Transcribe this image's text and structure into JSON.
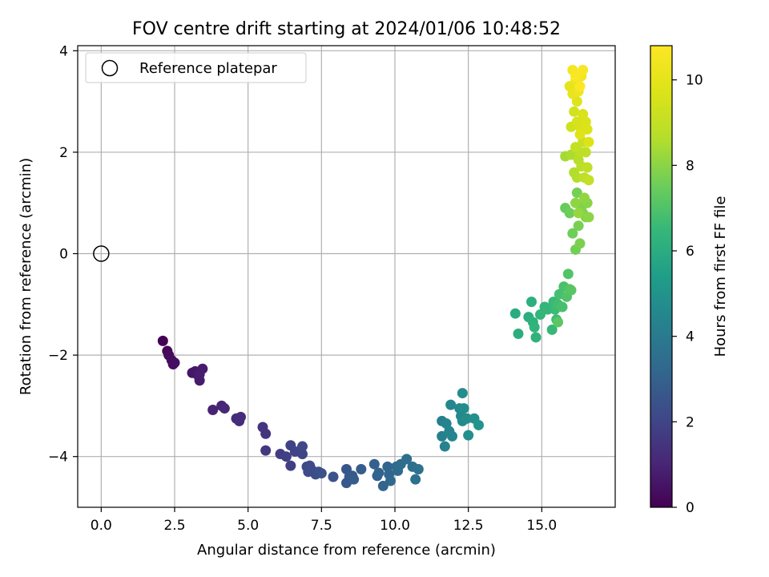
{
  "chart_data": {
    "type": "scatter",
    "title": "FOV centre drift starting at 2024/01/06 10:48:52",
    "xlabel": "Angular distance from reference (arcmin)",
    "ylabel": "Rotation from reference (arcmin)",
    "xlim": [
      -0.8,
      17.5
    ],
    "ylim": [
      -5.0,
      4.1
    ],
    "xticks": [
      0.0,
      2.5,
      5.0,
      7.5,
      10.0,
      12.5,
      15.0
    ],
    "xtick_labels": [
      "0.0",
      "2.5",
      "5.0",
      "7.5",
      "10.0",
      "12.5",
      "15.0"
    ],
    "yticks": [
      -4,
      -2,
      0,
      2,
      4
    ],
    "ytick_labels": [
      "−4",
      "−2",
      "0",
      "2",
      "4"
    ],
    "grid": true,
    "legend": {
      "position": "top-left",
      "entries": [
        "Reference platepar"
      ]
    },
    "reference_point": {
      "x": 0.0,
      "y": 0.0
    },
    "colorbar": {
      "label": "Hours from first FF file",
      "range": [
        0,
        10.8
      ],
      "ticks": [
        0,
        2,
        4,
        6,
        8,
        10
      ],
      "tick_labels": [
        "0",
        "2",
        "4",
        "6",
        "8",
        "10"
      ],
      "colormap": "viridis"
    },
    "points": [
      [
        2.1,
        -1.72,
        0.0
      ],
      [
        2.25,
        -1.92,
        0.15
      ],
      [
        2.3,
        -2.0,
        0.25
      ],
      [
        2.4,
        -2.1,
        0.3
      ],
      [
        2.45,
        -2.18,
        0.35
      ],
      [
        2.5,
        -2.15,
        0.4
      ],
      [
        3.1,
        -2.35,
        0.55
      ],
      [
        3.2,
        -2.32,
        0.6
      ],
      [
        3.3,
        -2.4,
        0.65
      ],
      [
        3.35,
        -2.5,
        0.7
      ],
      [
        3.45,
        -2.27,
        0.75
      ],
      [
        3.35,
        -2.38,
        0.8
      ],
      [
        3.8,
        -3.08,
        0.95
      ],
      [
        4.1,
        -3.0,
        1.0
      ],
      [
        4.2,
        -3.05,
        1.05
      ],
      [
        4.6,
        -3.25,
        1.15
      ],
      [
        4.7,
        -3.3,
        1.2
      ],
      [
        4.75,
        -3.22,
        1.25
      ],
      [
        5.5,
        -3.42,
        1.45
      ],
      [
        5.6,
        -3.55,
        1.5
      ],
      [
        5.6,
        -3.88,
        1.55
      ],
      [
        6.1,
        -3.95,
        1.75
      ],
      [
        6.3,
        -4.0,
        1.8
      ],
      [
        6.45,
        -4.18,
        1.85
      ],
      [
        6.45,
        -3.78,
        1.9
      ],
      [
        6.6,
        -3.9,
        1.95
      ],
      [
        6.85,
        -3.95,
        2.0
      ],
      [
        6.85,
        -3.8,
        2.05
      ],
      [
        7.0,
        -4.2,
        2.1
      ],
      [
        7.05,
        -4.3,
        2.15
      ],
      [
        7.1,
        -4.18,
        2.2
      ],
      [
        7.15,
        -4.25,
        2.25
      ],
      [
        7.3,
        -4.35,
        2.3
      ],
      [
        7.4,
        -4.3,
        2.35
      ],
      [
        7.5,
        -4.33,
        2.4
      ],
      [
        7.9,
        -4.4,
        2.5
      ],
      [
        8.35,
        -4.25,
        2.6
      ],
      [
        8.35,
        -4.52,
        2.65
      ],
      [
        8.45,
        -4.4,
        2.7
      ],
      [
        8.55,
        -4.38,
        2.75
      ],
      [
        8.6,
        -4.45,
        2.8
      ],
      [
        8.85,
        -4.25,
        2.85
      ],
      [
        9.3,
        -4.15,
        2.95
      ],
      [
        9.4,
        -4.38,
        3.0
      ],
      [
        9.45,
        -4.32,
        3.05
      ],
      [
        9.6,
        -4.58,
        3.1
      ],
      [
        9.75,
        -4.2,
        3.15
      ],
      [
        9.8,
        -4.35,
        3.2
      ],
      [
        9.85,
        -4.48,
        3.25
      ],
      [
        10.05,
        -4.2,
        3.3
      ],
      [
        10.1,
        -4.28,
        3.35
      ],
      [
        10.2,
        -4.15,
        3.4
      ],
      [
        10.4,
        -4.05,
        3.5
      ],
      [
        10.6,
        -4.2,
        3.55
      ],
      [
        10.7,
        -4.45,
        3.6
      ],
      [
        10.8,
        -4.25,
        3.65
      ],
      [
        11.6,
        -3.3,
        4.2
      ],
      [
        11.6,
        -3.6,
        4.25
      ],
      [
        11.7,
        -3.8,
        4.3
      ],
      [
        11.75,
        -3.35,
        4.35
      ],
      [
        11.85,
        -3.5,
        4.4
      ],
      [
        11.95,
        -3.6,
        4.45
      ],
      [
        11.9,
        -2.98,
        4.5
      ],
      [
        12.2,
        -3.05,
        4.55
      ],
      [
        12.25,
        -3.2,
        4.6
      ],
      [
        12.3,
        -3.3,
        4.65
      ],
      [
        12.3,
        -2.75,
        4.7
      ],
      [
        12.35,
        -3.05,
        4.75
      ],
      [
        12.45,
        -3.25,
        4.8
      ],
      [
        12.5,
        -3.58,
        4.85
      ],
      [
        12.7,
        -3.25,
        4.9
      ],
      [
        12.85,
        -3.38,
        5.0
      ],
      [
        14.1,
        -1.18,
        6.0
      ],
      [
        14.2,
        -1.58,
        6.05
      ],
      [
        14.55,
        -1.25,
        6.1
      ],
      [
        14.65,
        -0.95,
        6.15
      ],
      [
        14.7,
        -1.35,
        6.2
      ],
      [
        14.8,
        -1.65,
        6.25
      ],
      [
        14.75,
        -1.45,
        6.3
      ],
      [
        14.95,
        -1.2,
        6.35
      ],
      [
        15.1,
        -1.05,
        6.4
      ],
      [
        15.2,
        -1.1,
        6.45
      ],
      [
        15.35,
        -1.5,
        6.5
      ],
      [
        15.4,
        -0.95,
        6.55
      ],
      [
        15.45,
        -1.1,
        6.6
      ],
      [
        15.5,
        -1.3,
        6.65
      ],
      [
        15.55,
        -1.0,
        6.7
      ],
      [
        15.6,
        -0.8,
        6.8
      ],
      [
        15.7,
        -1.05,
        6.85
      ],
      [
        15.75,
        -0.65,
        6.9
      ],
      [
        15.85,
        -0.85,
        7.0
      ],
      [
        15.9,
        -0.4,
        7.05
      ],
      [
        15.95,
        -0.7,
        7.1
      ],
      [
        16.0,
        -0.72,
        7.15
      ],
      [
        15.55,
        -1.35,
        7.2
      ],
      [
        15.8,
        0.9,
        7.4
      ],
      [
        15.95,
        0.8,
        7.5
      ],
      [
        16.05,
        0.4,
        7.55
      ],
      [
        16.15,
        0.08,
        7.6
      ],
      [
        16.2,
        1.2,
        7.65
      ],
      [
        16.25,
        0.55,
        7.7
      ],
      [
        16.3,
        0.2,
        7.75
      ],
      [
        16.35,
        0.92,
        7.8
      ],
      [
        16.4,
        0.8,
        7.85
      ],
      [
        16.5,
        0.72,
        7.9
      ],
      [
        16.55,
        1.0,
        7.95
      ],
      [
        16.6,
        0.72,
        8.0
      ],
      [
        16.15,
        1.0,
        8.05
      ],
      [
        16.45,
        1.1,
        8.1
      ],
      [
        16.25,
        0.8,
        8.15
      ],
      [
        15.8,
        1.92,
        8.4
      ],
      [
        16.0,
        1.95,
        8.5
      ],
      [
        16.1,
        1.6,
        8.6
      ],
      [
        16.2,
        1.5,
        8.65
      ],
      [
        16.25,
        1.85,
        8.7
      ],
      [
        16.3,
        2.0,
        8.75
      ],
      [
        16.35,
        1.72,
        8.8
      ],
      [
        16.45,
        1.5,
        8.85
      ],
      [
        16.5,
        2.0,
        8.9
      ],
      [
        16.55,
        1.7,
        8.95
      ],
      [
        16.6,
        1.45,
        9.0
      ],
      [
        16.15,
        2.1,
        9.05
      ],
      [
        16.4,
        2.2,
        9.1
      ],
      [
        16.0,
        2.5,
        9.3
      ],
      [
        16.1,
        2.8,
        9.4
      ],
      [
        16.2,
        2.6,
        9.5
      ],
      [
        16.3,
        2.5,
        9.55
      ],
      [
        16.4,
        2.75,
        9.6
      ],
      [
        16.5,
        2.6,
        9.65
      ],
      [
        16.55,
        2.45,
        9.7
      ],
      [
        16.6,
        2.2,
        9.75
      ],
      [
        16.2,
        3.0,
        9.8
      ],
      [
        16.3,
        2.35,
        9.85
      ],
      [
        15.95,
        3.3,
        10.0
      ],
      [
        16.05,
        3.15,
        10.1
      ],
      [
        16.15,
        3.4,
        10.2
      ],
      [
        16.25,
        3.2,
        10.3
      ],
      [
        16.35,
        3.5,
        10.4
      ],
      [
        16.05,
        3.62,
        10.5
      ],
      [
        16.4,
        3.62,
        10.6
      ],
      [
        16.15,
        3.5,
        10.7
      ],
      [
        16.3,
        3.3,
        10.8
      ]
    ]
  }
}
